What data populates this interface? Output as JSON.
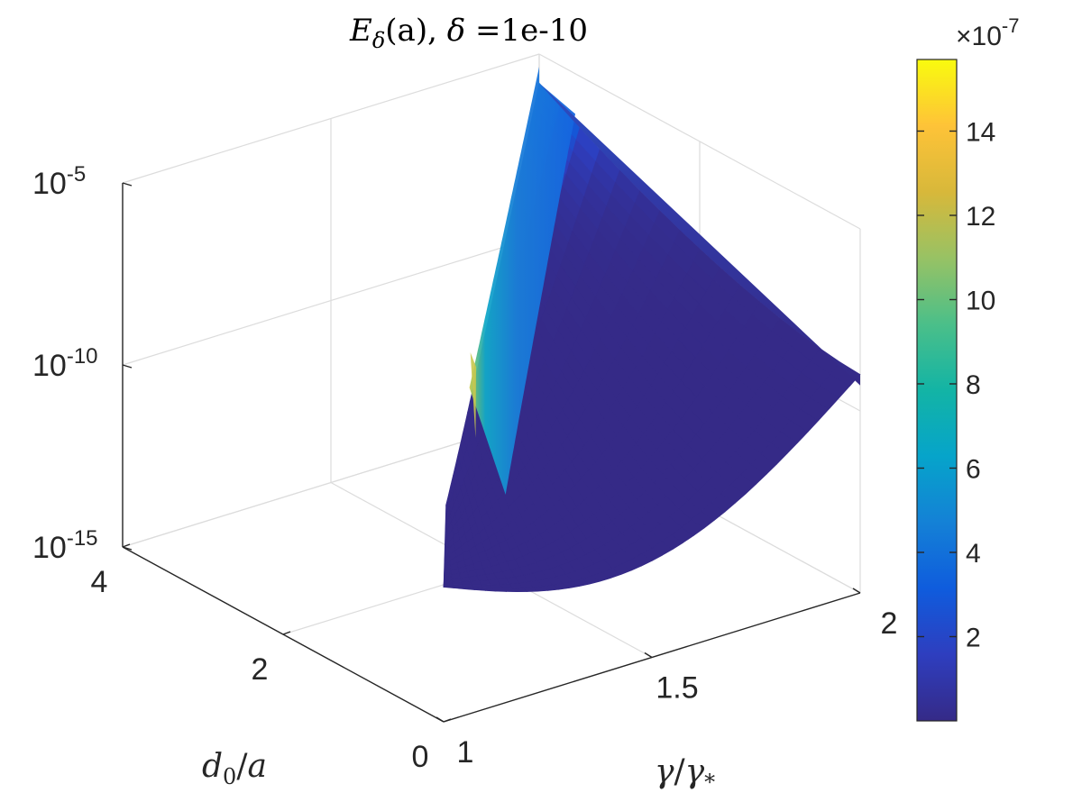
{
  "chart_data": {
    "type": "surface3d",
    "title": {
      "prefix": "E",
      "sub": "δ",
      "after": "(a), ",
      "delta": "δ",
      "eq": " =",
      "value": "1e-10"
    },
    "xlabel": {
      "num": "γ",
      "den": "γ",
      "den_sub": "*"
    },
    "ylabel": {
      "num": "d",
      "num_sub": "0",
      "den": "a"
    },
    "x_ticks": [
      "1",
      "1.5",
      "2"
    ],
    "x_range": [
      1,
      2
    ],
    "y_ticks": [
      "0",
      "2",
      "4"
    ],
    "y_range": [
      0,
      4
    ],
    "z_scale": "log",
    "z_ticks": [
      {
        "base": "10",
        "exp": "-15"
      },
      {
        "base": "10",
        "exp": "-10"
      },
      {
        "base": "10",
        "exp": "-5"
      }
    ],
    "z_range": [
      "1e-15",
      "1e-5"
    ],
    "surface_valid_region": "d0/a <= 4*(gamma/gamma* - 1)",
    "surface_samples": [
      {
        "gamma": 1.0,
        "d0_over_a": 0.0,
        "E": 5e-12
      },
      {
        "gamma": 1.3,
        "d0_over_a": 0.0,
        "E": 4e-13
      },
      {
        "gamma": 1.6,
        "d0_over_a": 0.0,
        "E": 1.5e-12
      },
      {
        "gamma": 2.0,
        "d0_over_a": 0.0,
        "E": 1e-09
      },
      {
        "gamma": 2.0,
        "d0_over_a": 4.0,
        "E": 1.6e-06
      },
      {
        "gamma": 1.5,
        "d0_over_a": 2.0,
        "E": 3e-08
      }
    ],
    "colorbar": {
      "multiplier_base": "×10",
      "multiplier_exp": "-7",
      "ticks": [
        "2",
        "4",
        "6",
        "8",
        "10",
        "12",
        "14"
      ],
      "range": [
        0,
        15.7
      ],
      "colormap": "parula"
    },
    "grid": true,
    "box": false,
    "colors": {
      "surface_low": "#352a87",
      "surface_mid": "#0f5cdd",
      "surface_high": "#f9fb0e",
      "grid": "#dcdcdc",
      "axis": "#262626"
    }
  }
}
